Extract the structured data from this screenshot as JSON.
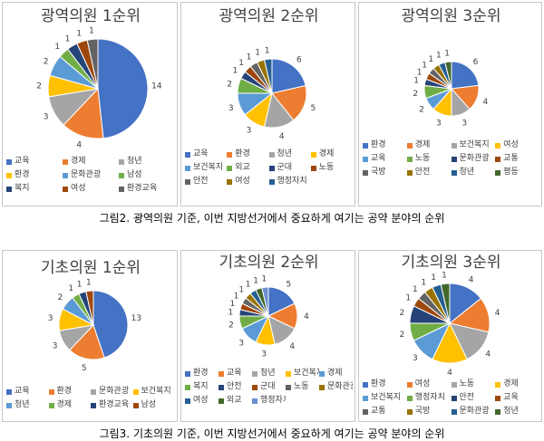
{
  "captions": {
    "fig2": "그림2. 광역의원 기준, 이번 지방선거에서 중요하게 여기는 공약 분야의 순위",
    "fig3": "그림3. 기초의원 기준, 이번 지방선거에서 중요하게 여기는 공약 분야의 순위"
  },
  "colors": [
    "#4472C4",
    "#ED7D31",
    "#A5A5A5",
    "#FFC000",
    "#5B9BD5",
    "#70AD47",
    "#264478",
    "#9E480E",
    "#636363",
    "#997300",
    "#255E91",
    "#43682B",
    "#698ED0",
    "#F1975A"
  ],
  "chart_data": [
    {
      "type": "pie",
      "title": "광역의원 1순위",
      "categories": [
        "교육",
        "경제",
        "청년",
        "환경",
        "문화관광",
        "남성",
        "복지",
        "여성",
        "환경교육"
      ],
      "values": [
        14,
        4,
        3,
        2,
        2,
        1,
        1,
        1,
        1
      ],
      "legend_position": "bottom"
    },
    {
      "type": "pie",
      "title": "광역의원 2순위",
      "categories": [
        "교육",
        "환경",
        "청년",
        "경제",
        "보건복지",
        "외교",
        "군대",
        "노동",
        "안전",
        "여성",
        "행정자치"
      ],
      "values": [
        6,
        5,
        4,
        3,
        3,
        2,
        1,
        1,
        1,
        1,
        1
      ],
      "legend_position": "bottom"
    },
    {
      "type": "pie",
      "title": "광역의원 3순위",
      "categories": [
        "환경",
        "경제",
        "보건복지",
        "여성",
        "교육",
        "노동",
        "문화관광",
        "교통",
        "국방",
        "안전",
        "청년",
        "평등"
      ],
      "values": [
        6,
        4,
        3,
        3,
        2,
        2,
        1,
        1,
        1,
        1,
        1,
        1
      ],
      "legend_position": "bottom"
    },
    {
      "type": "pie",
      "title": "기초의원 1순위",
      "categories": [
        "교육",
        "환경",
        "문화관광",
        "보건복지",
        "청년",
        "경제",
        "환경교육",
        "남성"
      ],
      "values": [
        13,
        5,
        3,
        3,
        2,
        1,
        1,
        1
      ],
      "legend_position": "bottom"
    },
    {
      "type": "pie",
      "title": "기초의원 2순위",
      "categories": [
        "환경",
        "교육",
        "청년",
        "보건복지",
        "경제",
        "복지",
        "안전",
        "군대",
        "노동",
        "문화관광",
        "여성",
        "외교",
        "행정자치"
      ],
      "values": [
        5,
        4,
        4,
        3,
        3,
        2,
        1,
        1,
        1,
        1,
        1,
        1,
        1
      ],
      "legend_position": "bottom"
    },
    {
      "type": "pie",
      "title": "기초의원 3순위",
      "categories": [
        "환경",
        "여성",
        "노동",
        "경제",
        "보건복지",
        "행정자치",
        "안전",
        "교육",
        "교통",
        "국방",
        "문화관광",
        "청년"
      ],
      "values": [
        4,
        4,
        4,
        4,
        3,
        2,
        2,
        1,
        1,
        1,
        1,
        1
      ],
      "legend_position": "bottom"
    }
  ]
}
